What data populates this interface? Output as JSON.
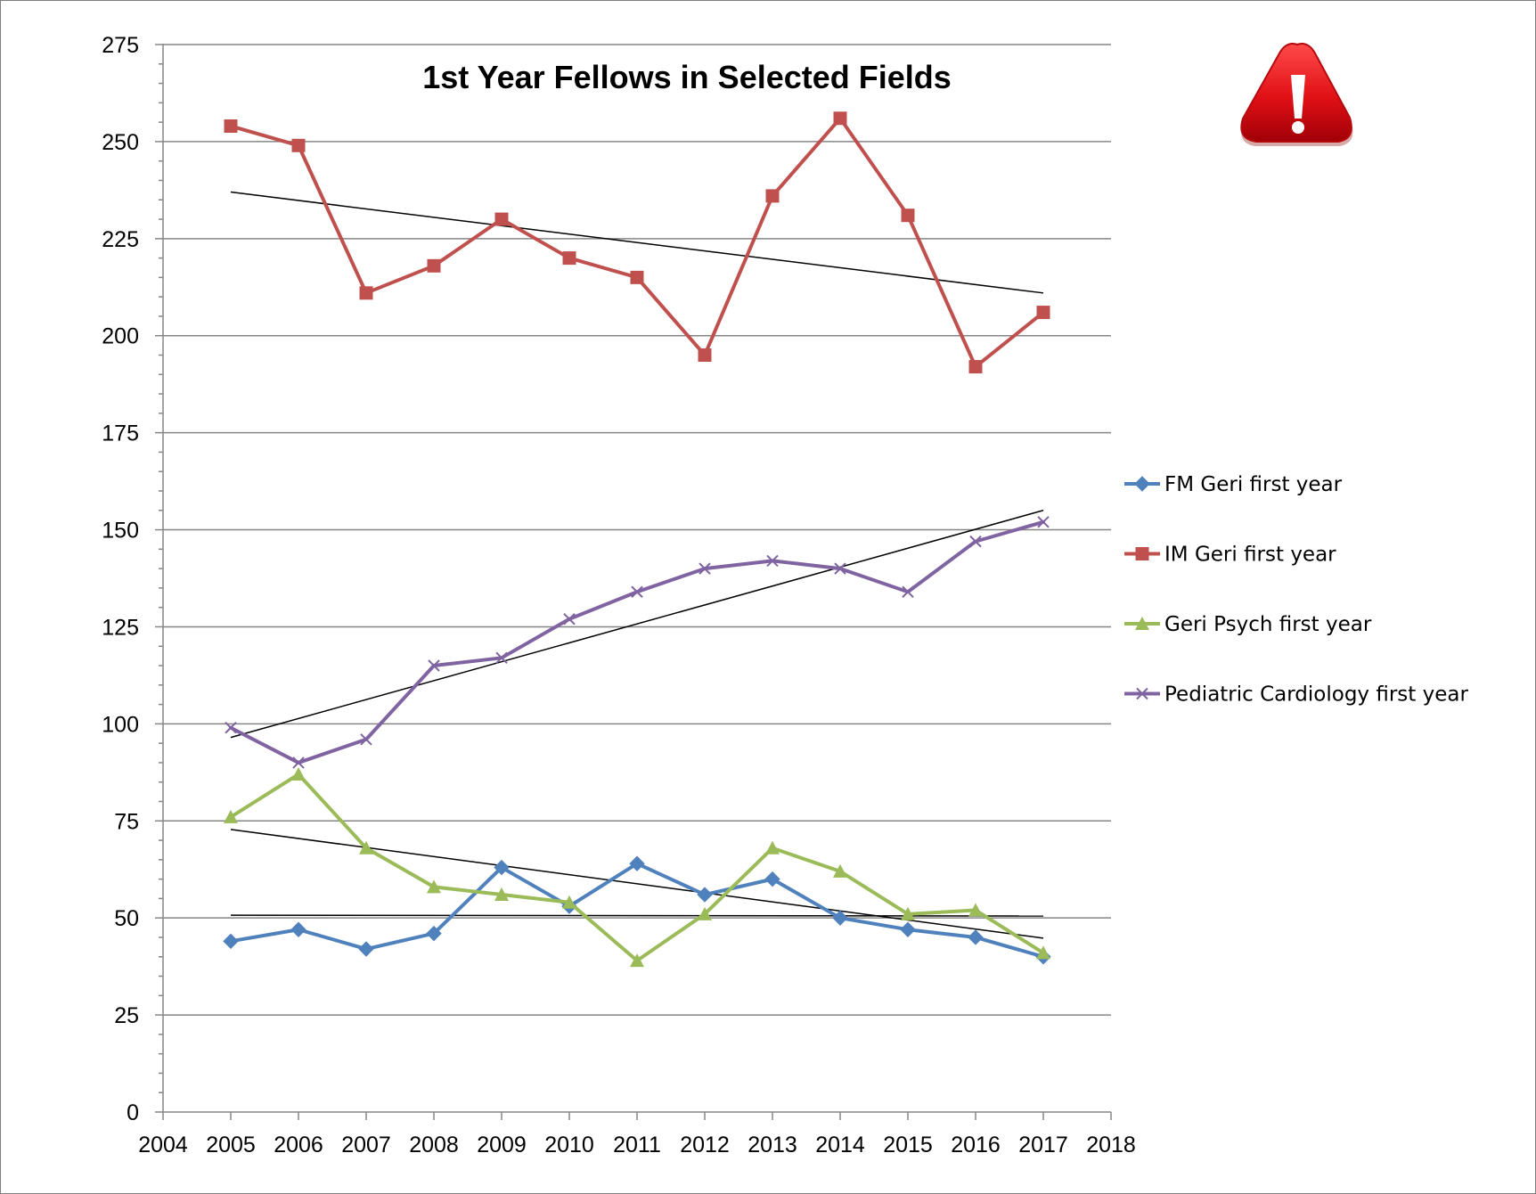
{
  "chart_data": {
    "type": "line",
    "title": "1st Year Fellows in Selected Fields",
    "xlabel": "",
    "ylabel": "",
    "xlim": [
      2004,
      2018
    ],
    "ylim": [
      0,
      275
    ],
    "x_ticks": [
      2004,
      2005,
      2006,
      2007,
      2008,
      2009,
      2010,
      2011,
      2012,
      2013,
      2014,
      2015,
      2016,
      2017,
      2018
    ],
    "y_ticks": [
      0,
      25,
      50,
      75,
      100,
      125,
      150,
      175,
      200,
      225,
      250,
      275
    ],
    "grid": true,
    "legend_position": "right",
    "x": [
      2005,
      2006,
      2007,
      2008,
      2009,
      2010,
      2011,
      2012,
      2013,
      2014,
      2015,
      2016,
      2017
    ],
    "series": [
      {
        "name": "FM Geri first year",
        "color": "#4f81bd",
        "marker": "diamond",
        "values": [
          44,
          47,
          42,
          46,
          63,
          53,
          64,
          56,
          60,
          50,
          47,
          45,
          40
        ],
        "trendline": [
          50.7,
          50.5
        ]
      },
      {
        "name": "IM Geri first year",
        "color": "#c0504d",
        "marker": "square",
        "values": [
          254,
          249,
          211,
          218,
          230,
          220,
          215,
          195,
          236,
          256,
          231,
          192,
          206
        ],
        "trendline": [
          237,
          211
        ]
      },
      {
        "name": "Geri Psych first year",
        "color": "#9bbb59",
        "marker": "triangle",
        "values": [
          76,
          87,
          68,
          58,
          56,
          54,
          39,
          51,
          68,
          62,
          51,
          52,
          41
        ],
        "trendline": [
          72.8,
          44.8
        ]
      },
      {
        "name": "Pediatric Cardiology first year",
        "color": "#8064a2",
        "marker": "x",
        "values": [
          99,
          90,
          96,
          115,
          117,
          127,
          134,
          140,
          142,
          140,
          134,
          147,
          152
        ],
        "trendline": [
          96.5,
          155
        ]
      }
    ]
  },
  "warning_icon": {
    "name": "warning-icon",
    "color": "#e8161b"
  }
}
